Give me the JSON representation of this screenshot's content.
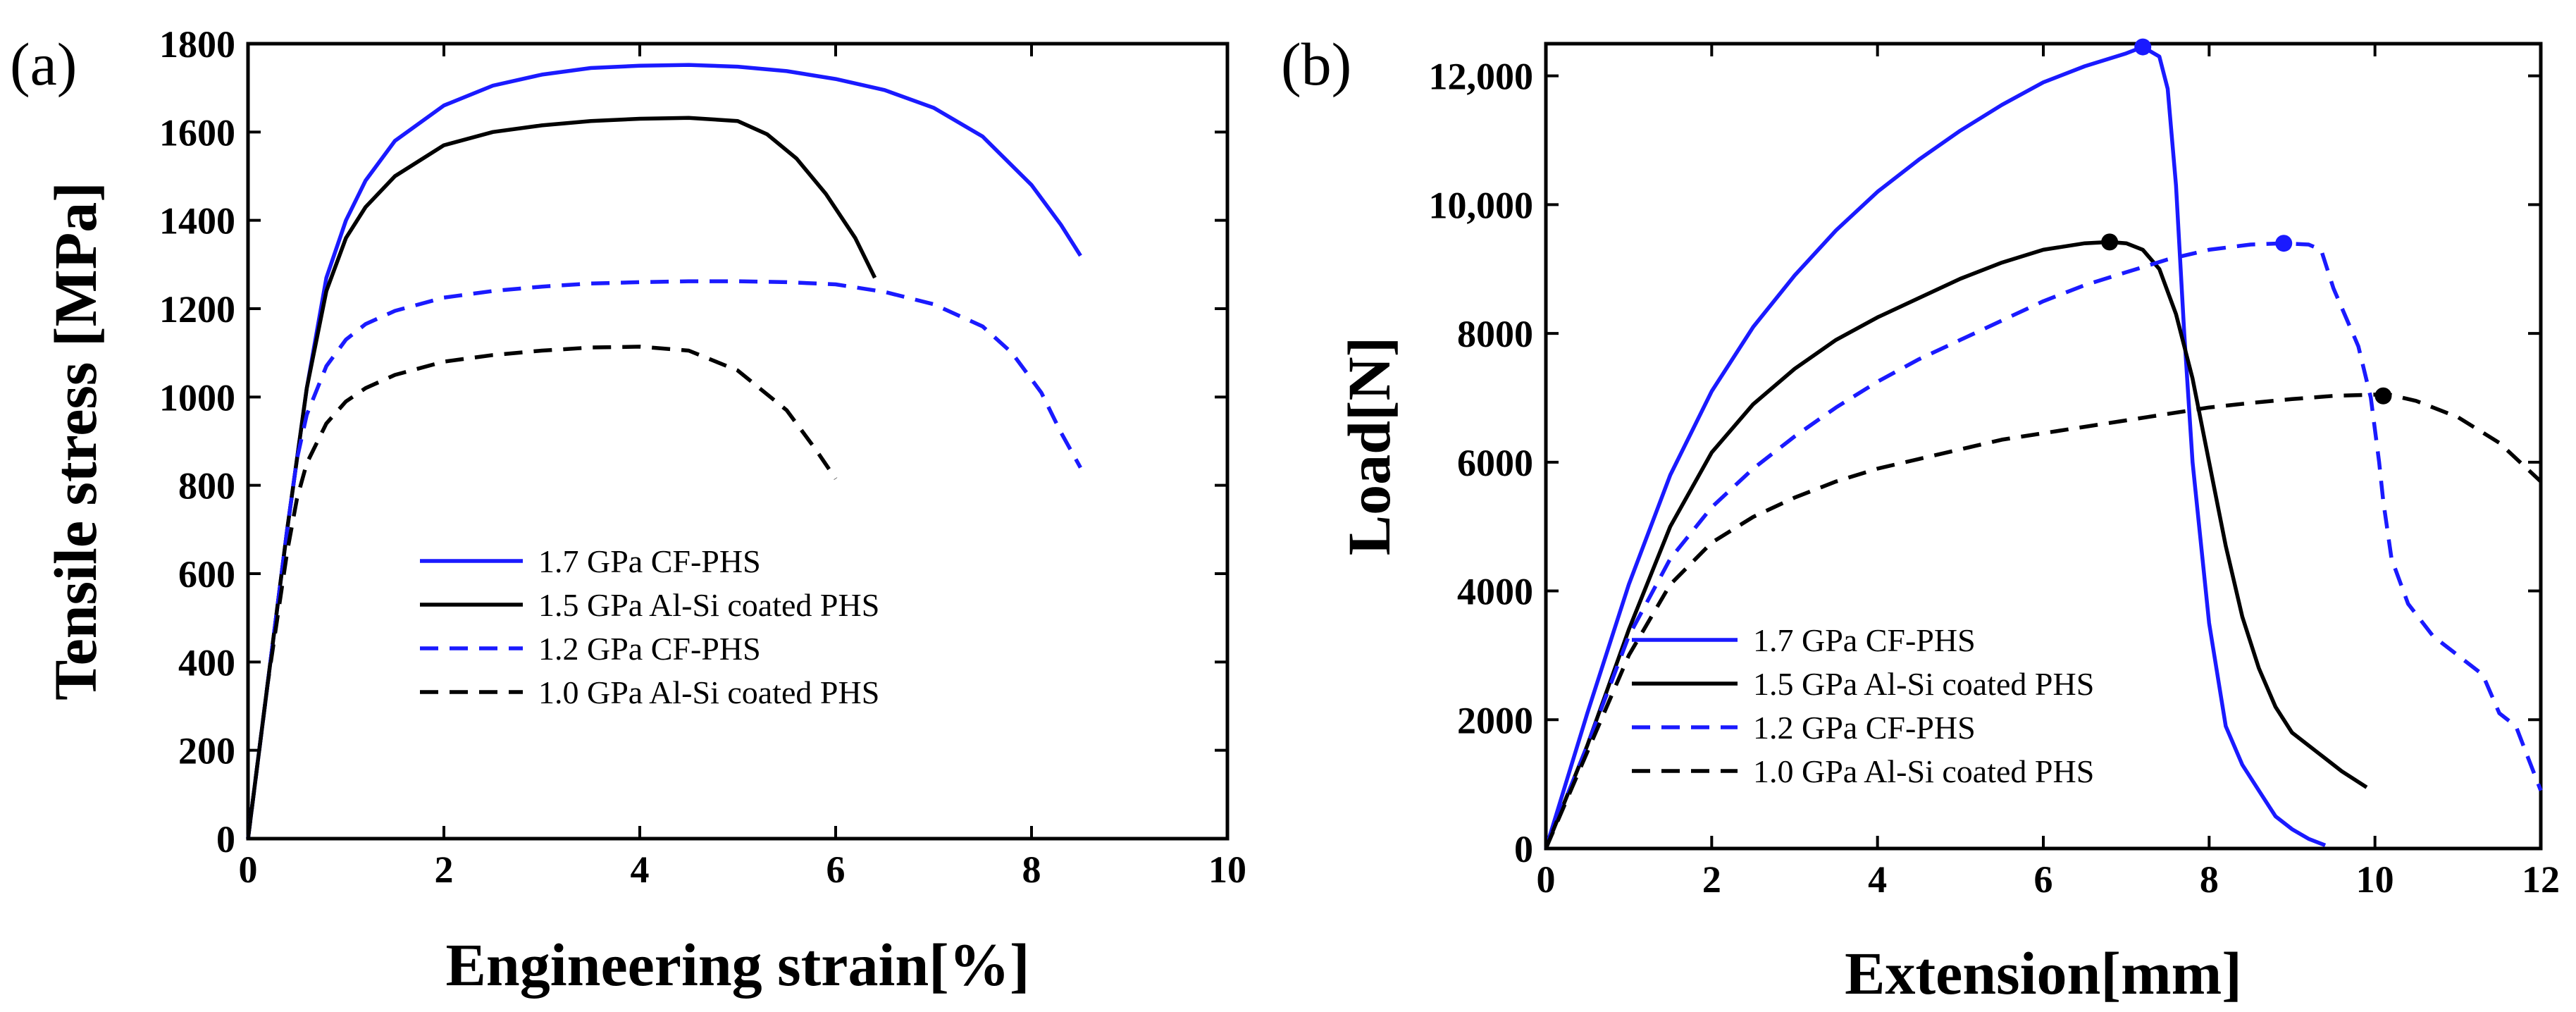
{
  "colors": {
    "blue": "#1a1aff",
    "black": "#000000"
  },
  "chart_data": [
    {
      "type": "line",
      "panel_label": "(a)",
      "xlabel": "Engineering strain[%]",
      "ylabel": "Tensile stress [MPa]",
      "xlim": [
        0,
        10
      ],
      "ylim": [
        0,
        1800
      ],
      "xticks": [
        0,
        2,
        4,
        6,
        8,
        10
      ],
      "yticks": [
        0,
        200,
        400,
        600,
        800,
        1000,
        1200,
        1400,
        1600,
        1800
      ],
      "xtick_labels": [
        "0",
        "2",
        "4",
        "6",
        "8",
        "10"
      ],
      "ytick_labels": [
        "0",
        "200",
        "400",
        "600",
        "800",
        "1000",
        "1200",
        "1400",
        "1600",
        "1800"
      ],
      "legend": {
        "position": "lower-center"
      },
      "series": [
        {
          "name": "1.7 GPa CF-PHS",
          "color": "blue",
          "dash": "solid",
          "x": [
            0,
            0.2,
            0.4,
            0.6,
            0.8,
            1.0,
            1.2,
            1.5,
            2.0,
            2.5,
            3.0,
            3.5,
            4.0,
            4.5,
            5.0,
            5.5,
            6.0,
            6.5,
            7.0,
            7.5,
            8.0,
            8.3,
            8.5
          ],
          "y": [
            0,
            350,
            700,
            1020,
            1270,
            1400,
            1490,
            1580,
            1660,
            1705,
            1730,
            1745,
            1750,
            1752,
            1748,
            1738,
            1720,
            1695,
            1655,
            1590,
            1480,
            1390,
            1320
          ]
        },
        {
          "name": "1.5 GPa Al-Si coated PHS",
          "color": "black",
          "dash": "solid",
          "x": [
            0,
            0.2,
            0.4,
            0.6,
            0.8,
            1.0,
            1.2,
            1.5,
            2.0,
            2.5,
            3.0,
            3.5,
            4.0,
            4.5,
            5.0,
            5.3,
            5.6,
            5.9,
            6.2,
            6.4
          ],
          "y": [
            0,
            350,
            700,
            1020,
            1240,
            1360,
            1430,
            1500,
            1570,
            1600,
            1615,
            1625,
            1630,
            1632,
            1625,
            1595,
            1540,
            1460,
            1360,
            1270
          ]
        },
        {
          "name": "1.2 GPa CF-PHS",
          "color": "blue",
          "dash": "dashed",
          "x": [
            0,
            0.2,
            0.4,
            0.5,
            0.6,
            0.8,
            1.0,
            1.2,
            1.5,
            2.0,
            2.5,
            3.0,
            3.5,
            4.0,
            4.5,
            5.0,
            5.5,
            6.0,
            6.5,
            7.0,
            7.5,
            7.8,
            8.1,
            8.3,
            8.5
          ],
          "y": [
            0,
            350,
            700,
            860,
            960,
            1070,
            1130,
            1165,
            1195,
            1225,
            1240,
            1250,
            1257,
            1260,
            1262,
            1262,
            1260,
            1255,
            1238,
            1210,
            1160,
            1100,
            1010,
            920,
            840
          ]
        },
        {
          "name": "1.0 GPa Al-Si coated PHS",
          "color": "black",
          "dash": "dashed",
          "x": [
            0,
            0.2,
            0.4,
            0.5,
            0.6,
            0.8,
            1.0,
            1.2,
            1.5,
            2.0,
            2.5,
            3.0,
            3.5,
            4.0,
            4.5,
            5.0,
            5.5,
            5.8,
            6.0
          ],
          "y": [
            0,
            350,
            650,
            770,
            850,
            940,
            990,
            1020,
            1050,
            1080,
            1095,
            1105,
            1112,
            1114,
            1105,
            1060,
            970,
            880,
            815
          ]
        }
      ],
      "markers": []
    },
    {
      "type": "line",
      "panel_label": "(b)",
      "xlabel": "Extension[mm]",
      "ylabel": "Load[N]",
      "xlim": [
        0,
        12
      ],
      "ylim": [
        0,
        12500
      ],
      "xticks": [
        0,
        2,
        4,
        6,
        8,
        10,
        12
      ],
      "yticks": [
        0,
        2000,
        4000,
        6000,
        8000,
        10000,
        12000
      ],
      "xtick_labels": [
        "0",
        "2",
        "4",
        "6",
        "8",
        "10",
        "12"
      ],
      "ytick_labels": [
        "0",
        "2000",
        "4000",
        "6000",
        "8000",
        "10,000",
        "12,000"
      ],
      "legend": {
        "position": "lower-center"
      },
      "series": [
        {
          "name": "1.7 GPa CF-PHS",
          "color": "blue",
          "dash": "solid",
          "x": [
            0,
            0.5,
            1.0,
            1.5,
            2.0,
            2.5,
            3.0,
            3.5,
            4.0,
            4.5,
            5.0,
            5.5,
            6.0,
            6.5,
            7.0,
            7.2,
            7.4,
            7.5,
            7.6,
            7.7,
            7.8,
            8.0,
            8.2,
            8.4,
            8.6,
            8.8,
            9.0,
            9.2,
            9.4
          ],
          "y": [
            0,
            2100,
            4100,
            5800,
            7100,
            8100,
            8900,
            9600,
            10200,
            10700,
            11150,
            11550,
            11900,
            12150,
            12350,
            12450,
            12300,
            11800,
            10300,
            8000,
            6000,
            3500,
            1900,
            1300,
            900,
            500,
            300,
            150,
            50
          ]
        },
        {
          "name": "1.5 GPa Al-Si coated PHS",
          "color": "black",
          "dash": "solid",
          "x": [
            0,
            0.5,
            1.0,
            1.5,
            2.0,
            2.5,
            3.0,
            3.5,
            4.0,
            4.5,
            5.0,
            5.5,
            6.0,
            6.5,
            6.8,
            7.0,
            7.2,
            7.4,
            7.6,
            7.8,
            8.0,
            8.2,
            8.4,
            8.6,
            8.8,
            9.0,
            9.3,
            9.6,
            9.9
          ],
          "y": [
            0,
            1600,
            3400,
            5000,
            6150,
            6900,
            7450,
            7900,
            8250,
            8550,
            8850,
            9100,
            9300,
            9400,
            9420,
            9400,
            9300,
            9000,
            8300,
            7300,
            6000,
            4700,
            3600,
            2800,
            2200,
            1800,
            1500,
            1200,
            950
          ]
        },
        {
          "name": "1.2 GPa CF-PHS",
          "color": "blue",
          "dash": "dashed",
          "x": [
            0,
            0.5,
            1.0,
            1.5,
            2.0,
            2.5,
            3.0,
            3.5,
            4.0,
            4.5,
            5.0,
            5.5,
            6.0,
            6.5,
            7.0,
            7.5,
            8.0,
            8.5,
            8.9,
            9.2,
            9.35,
            9.5,
            9.8,
            9.95,
            10.05,
            10.1,
            10.2,
            10.4,
            10.7,
            11.0,
            11.3,
            11.5,
            11.7,
            11.85,
            12.0
          ],
          "y": [
            0,
            1600,
            3300,
            4500,
            5300,
            5900,
            6400,
            6850,
            7250,
            7600,
            7900,
            8200,
            8500,
            8750,
            8950,
            9150,
            9300,
            9380,
            9400,
            9380,
            9300,
            8700,
            7800,
            7000,
            6000,
            5400,
            4500,
            3800,
            3300,
            3000,
            2700,
            2100,
            1900,
            1400,
            900
          ]
        },
        {
          "name": "1.0 GPa Al-Si coated PHS",
          "color": "black",
          "dash": "dashed",
          "x": [
            0,
            0.5,
            1.0,
            1.5,
            2.0,
            2.5,
            3.0,
            3.5,
            4.0,
            4.5,
            5.0,
            5.5,
            6.0,
            6.5,
            7.0,
            7.5,
            8.0,
            8.5,
            9.0,
            9.5,
            10.0,
            10.2,
            10.5,
            11.0,
            11.5,
            12.0
          ],
          "y": [
            0,
            1500,
            3000,
            4100,
            4750,
            5150,
            5450,
            5700,
            5900,
            6050,
            6200,
            6350,
            6450,
            6550,
            6650,
            6750,
            6850,
            6920,
            6980,
            7030,
            7050,
            7040,
            6950,
            6700,
            6300,
            5700
          ]
        }
      ],
      "markers": [
        {
          "x": 7.2,
          "y": 12450,
          "color": "blue"
        },
        {
          "x": 6.8,
          "y": 9420,
          "color": "black"
        },
        {
          "x": 8.9,
          "y": 9400,
          "color": "blue"
        },
        {
          "x": 10.1,
          "y": 7030,
          "color": "black"
        }
      ]
    }
  ]
}
